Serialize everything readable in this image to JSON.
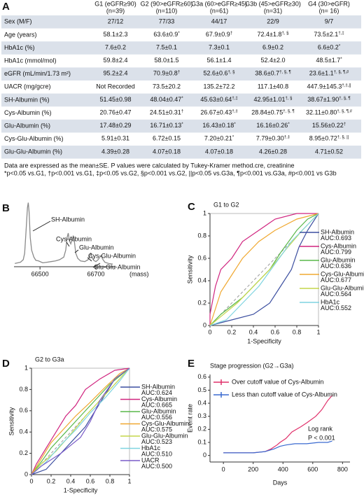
{
  "panel_labels": [
    "A",
    "B",
    "C",
    "D",
    "E"
  ],
  "table": {
    "header": [
      {
        "name": "G1 (eGFR≥90)",
        "n": "(n=39)"
      },
      {
        "name": "G2 (90>eGFR≥60)",
        "n": "(n=110)"
      },
      {
        "name": "G3a (60>eGFR≥45)",
        "n": "(n=61)"
      },
      {
        "name": "G3b (45>eGFR≥30)",
        "n": "(n=31)"
      },
      {
        "name": "G4 (30>eGFR)",
        "n": "(n= 16)"
      }
    ],
    "rows": [
      {
        "label": "Sex (M/F)",
        "cells": [
          "27/12",
          "77/33",
          "44/17",
          "22/9",
          "9/7"
        ],
        "sups": [
          null,
          null,
          null,
          null,
          null
        ]
      },
      {
        "label": "Age (years)",
        "cells": [
          "58.1±2.3",
          "63.6±0.9",
          "67.9±0.9",
          "72.4±1.8",
          "73.5±2.1"
        ],
        "sups": [
          null,
          "*",
          "†",
          "†, §",
          "†,‡"
        ]
      },
      {
        "label": "HbA1c (%)",
        "cells": [
          "7.6±0.2",
          "7.5±0.1",
          "7.3±0.1",
          "6.9±0.2",
          "6.6±0.2"
        ],
        "sups": [
          null,
          null,
          null,
          null,
          "*"
        ]
      },
      {
        "label": "HbA1c (mmol/mol)",
        "cells": [
          "59.8±2.4",
          "58.0±1.5",
          "56.1±1.4",
          "52.4±2.0",
          "48.5±1.7"
        ],
        "sups": [
          null,
          null,
          null,
          null,
          "*"
        ]
      },
      {
        "label": "eGFR (mL/min/1.73 m²)",
        "cells": [
          "95.2±2.4",
          "70.9±0.8",
          "52.6±0.6",
          "38.6±0.7",
          "23.6±1.1"
        ],
        "sups": [
          null,
          "†",
          "†, §",
          "†, §, ¶",
          "†, §, ¶,#"
        ]
      },
      {
        "label": "UACR (mg/gcre)",
        "cells": [
          "Not Recorded",
          "73.5±20.2",
          "135.2±72.2",
          "117.1±40.8",
          "447.9±145.3"
        ],
        "sups": [
          null,
          null,
          null,
          null,
          "†,‡,||"
        ]
      },
      {
        "label": "SH-Albumin (%)",
        "cells": [
          "51.45±0.98",
          "48.04±0.47",
          "45.63±0.64",
          "42.95±1.01",
          "38.67±1.90"
        ],
        "sups": [
          null,
          "*",
          "†,‡",
          "†, §",
          "†, §, ¶"
        ]
      },
      {
        "label": "Cys-Albumin (%)",
        "cells": [
          "20.76±0.47",
          "24.51±0.31",
          "26.67±0.43",
          "28.84±0.75",
          "32.11±0.80"
        ],
        "sups": [
          null,
          "†",
          "†,‡",
          "†, §, ¶",
          "†, §, ¶,#"
        ]
      },
      {
        "label": "Glu-Albumin (%)",
        "cells": [
          "17.48±0.29",
          "16.71±0.13",
          "16.43±0.18",
          "16.16±0.26",
          "15.56±0.22"
        ],
        "sups": [
          null,
          "*",
          "*",
          "*",
          "†"
        ]
      },
      {
        "label": "Cys-Glu-Albumin (%)",
        "cells": [
          "5.91±0.31",
          "6.72±0.15",
          "7.20±0.21",
          "7.79±0.30",
          "8.95±0.72"
        ],
        "sups": [
          null,
          null,
          "*",
          "†,‡",
          "†, §, ||"
        ]
      },
      {
        "label": "Glu-Glu-Albumin (%)",
        "cells": [
          "4.39±0.28",
          "4.07±0.18",
          "4.07±0.18",
          "4.26±0.28",
          "4.71±0.52"
        ],
        "sups": [
          null,
          null,
          null,
          null,
          null
        ]
      }
    ]
  },
  "notes": [
    "Data are expressed as the mean±SE. P values were calculated by Tukey-Kramer method.cre, creatinine",
    "*p<0.05 vs.G1, †p<0.001 vs.G1, ‡p<0.05 vs.G2, §p<0.001 vs.G2, ||p<0.05 vs.G3a, ¶p<0.001 vs.G3a, #p<0.001 vs G3b"
  ],
  "chart_data": [
    {
      "type": "line",
      "x_label": "(mass)",
      "color": "#8a8a8a",
      "x": [
        66410,
        66420,
        66430,
        66440,
        66445,
        66450,
        66455,
        66458,
        66461,
        66465,
        66470,
        66478,
        66485,
        66495,
        66510,
        66525,
        66540,
        66555,
        66570,
        66585,
        66592,
        66597,
        66601,
        66605,
        66610,
        66615,
        66619,
        66623,
        66628,
        66635,
        66645,
        66660,
        66672,
        66678,
        66682,
        66686,
        66692,
        66700,
        66708,
        66714,
        66719,
        66724,
        66732,
        66745,
        66760
      ],
      "values": [
        4,
        5,
        6,
        10,
        20,
        55,
        92,
        100,
        85,
        45,
        25,
        14,
        9,
        8,
        5,
        6,
        7,
        8,
        10,
        14,
        25,
        45,
        52,
        40,
        35,
        42,
        48,
        38,
        20,
        12,
        8,
        7,
        10,
        16,
        20,
        14,
        9,
        7,
        10,
        14,
        16,
        11,
        6,
        4,
        3
      ],
      "xlim": [
        66407,
        66770
      ],
      "ylim": [
        0,
        105
      ],
      "xticks": [
        66500,
        66700
      ],
      "annotations": [
        "SH-Albumin",
        "Cys-Albumin",
        "Glu-Albumin",
        "Cys-Glu-Albumin",
        "Glu-Glu-Albumin"
      ]
    },
    {
      "type": "line",
      "title": "G1 to G2",
      "x_label": "1-Specificity",
      "y_label": "Sensitivity",
      "xlim": [
        0,
        1
      ],
      "ylim": [
        0,
        1
      ],
      "xticks": [
        0,
        0.2,
        0.4,
        0.6,
        0.8,
        1
      ],
      "yticks": [
        0,
        0.2,
        0.4,
        0.6,
        0.8,
        1
      ],
      "series": [
        {
          "name": "SH-Albumin",
          "auc": "AUC:0.693",
          "color": "#3c4fa0",
          "x": [
            0,
            0.2,
            0.4,
            0.55,
            0.65,
            0.75,
            0.82,
            0.9,
            1
          ],
          "values": [
            0,
            0.05,
            0.1,
            0.2,
            0.35,
            0.5,
            0.7,
            0.85,
            1
          ]
        },
        {
          "name": "Cys-Albumin",
          "auc": "AUC:0.799",
          "color": "#d0247f",
          "x": [
            0,
            0,
            0.05,
            0.1,
            0.2,
            0.3,
            0.45,
            0.6,
            0.8,
            1
          ],
          "values": [
            0,
            0.1,
            0.35,
            0.5,
            0.6,
            0.75,
            0.85,
            0.95,
            1,
            1
          ]
        },
        {
          "name": "Glu-Albumin",
          "auc": "AUC:0.636",
          "color": "#59b84a",
          "x": [
            0,
            0.1,
            0.3,
            0.45,
            0.55,
            0.65,
            0.8,
            0.9,
            1
          ],
          "values": [
            0,
            0.1,
            0.25,
            0.4,
            0.5,
            0.65,
            0.85,
            0.95,
            1
          ]
        },
        {
          "name": "Cys-Glu-Albumin",
          "auc": "AUC:0.677",
          "color": "#f0a830",
          "x": [
            0,
            0.05,
            0.1,
            0.2,
            0.3,
            0.45,
            0.6,
            0.8,
            1
          ],
          "values": [
            0,
            0.15,
            0.3,
            0.45,
            0.6,
            0.75,
            0.85,
            0.95,
            1
          ]
        },
        {
          "name": "Glu-Glu-Albumin",
          "auc": "AUC:0.564",
          "color": "#c4d64a",
          "x": [
            0,
            0.1,
            0.25,
            0.4,
            0.55,
            0.7,
            0.85,
            1
          ],
          "values": [
            0,
            0.08,
            0.2,
            0.35,
            0.5,
            0.68,
            0.85,
            1
          ]
        },
        {
          "name": "HbA1c",
          "auc": "AUC:0.552",
          "color": "#7fd4e0",
          "x": [
            0,
            0.15,
            0.3,
            0.45,
            0.6,
            0.75,
            0.9,
            1
          ],
          "values": [
            0,
            0.05,
            0.2,
            0.35,
            0.55,
            0.75,
            0.9,
            1
          ]
        }
      ]
    },
    {
      "type": "line",
      "title": "G2 to G3a",
      "x_label": "1-Specificity",
      "y_label": "Sensitivity",
      "xlim": [
        0,
        1
      ],
      "ylim": [
        0,
        1
      ],
      "xticks": [
        0,
        0.2,
        0.4,
        0.6,
        0.8,
        1
      ],
      "yticks": [
        0,
        0.2,
        0.4,
        0.6,
        0.8,
        1
      ],
      "series": [
        {
          "name": "SH-Albumin",
          "auc": "AUC:0.624",
          "color": "#3c4fa0",
          "x": [
            0,
            0.15,
            0.3,
            0.45,
            0.55,
            0.65,
            0.75,
            0.85,
            1
          ],
          "values": [
            0,
            0.05,
            0.2,
            0.35,
            0.45,
            0.6,
            0.75,
            0.9,
            1
          ]
        },
        {
          "name": "Cys-Albumin",
          "auc": "AUC:0.665",
          "color": "#d0247f",
          "x": [
            0,
            0.05,
            0.15,
            0.25,
            0.35,
            0.45,
            0.55,
            0.7,
            0.85,
            1
          ],
          "values": [
            0,
            0.1,
            0.25,
            0.4,
            0.55,
            0.65,
            0.8,
            0.9,
            0.98,
            1
          ]
        },
        {
          "name": "Glu-Albumin",
          "auc": "AUC:0.556",
          "color": "#59b84a",
          "x": [
            0,
            0.1,
            0.2,
            0.35,
            0.5,
            0.65,
            0.8,
            1
          ],
          "values": [
            0,
            0.12,
            0.25,
            0.4,
            0.55,
            0.7,
            0.85,
            1
          ]
        },
        {
          "name": "Cys-Glu-Albumin",
          "auc": "AUC:0.575",
          "color": "#f0a830",
          "x": [
            0,
            0.08,
            0.2,
            0.3,
            0.45,
            0.6,
            0.75,
            0.9,
            1
          ],
          "values": [
            0,
            0.12,
            0.3,
            0.4,
            0.55,
            0.68,
            0.82,
            0.95,
            1
          ]
        },
        {
          "name": "Glu-Glu-Albumin",
          "auc": "AUC:0.523",
          "color": "#c4d64a",
          "x": [
            0,
            0.1,
            0.25,
            0.4,
            0.55,
            0.7,
            0.85,
            1
          ],
          "values": [
            0,
            0.1,
            0.22,
            0.38,
            0.55,
            0.7,
            0.85,
            1
          ]
        },
        {
          "name": "HbA1c",
          "auc": "AUC:0.510",
          "color": "#7fd4e0",
          "x": [
            0,
            0.15,
            0.3,
            0.45,
            0.6,
            0.75,
            0.9,
            1
          ],
          "values": [
            0,
            0.12,
            0.28,
            0.42,
            0.58,
            0.72,
            0.88,
            1
          ]
        },
        {
          "name": "UACR",
          "auc": "AUC:0.500",
          "color": "#7a5cc8",
          "x": [
            0,
            0.1,
            0.3,
            0.5,
            0.6,
            0.7,
            0.85,
            1
          ],
          "values": [
            0,
            0.08,
            0.2,
            0.35,
            0.5,
            0.7,
            0.9,
            1
          ]
        }
      ]
    },
    {
      "type": "line",
      "title": "Stage progression (G2→G3a)",
      "x_label": "Days",
      "y_label": "Event rate",
      "xlim": [
        -90,
        850
      ],
      "ylim": [
        -0.05,
        0.62
      ],
      "xticks": [
        0,
        200,
        400,
        600,
        800
      ],
      "yticks": [
        0,
        0.1,
        0.2,
        0.3,
        0.4,
        0.5,
        0.6
      ],
      "annotations": [
        "Log rank",
        "P < 0.001"
      ],
      "series": [
        {
          "name": "Over cutoff value of Cys-Albumin",
          "color": "#e0306a",
          "x": [
            0,
            100,
            200,
            280,
            320,
            360,
            380,
            420,
            460,
            520,
            560,
            620,
            660,
            700,
            730
          ],
          "values": [
            0.02,
            0.02,
            0.02,
            0.03,
            0.05,
            0.08,
            0.1,
            0.13,
            0.18,
            0.22,
            0.25,
            0.3,
            0.35,
            0.42,
            0.46
          ]
        },
        {
          "name": "Less than cutoff value of Cys-Albumin",
          "color": "#3a6ad0",
          "x": [
            0,
            200,
            280,
            340,
            380,
            420,
            480,
            560,
            640,
            700,
            730
          ],
          "values": [
            0.02,
            0.02,
            0.03,
            0.05,
            0.07,
            0.08,
            0.09,
            0.09,
            0.1,
            0.1,
            0.11
          ]
        }
      ]
    }
  ]
}
